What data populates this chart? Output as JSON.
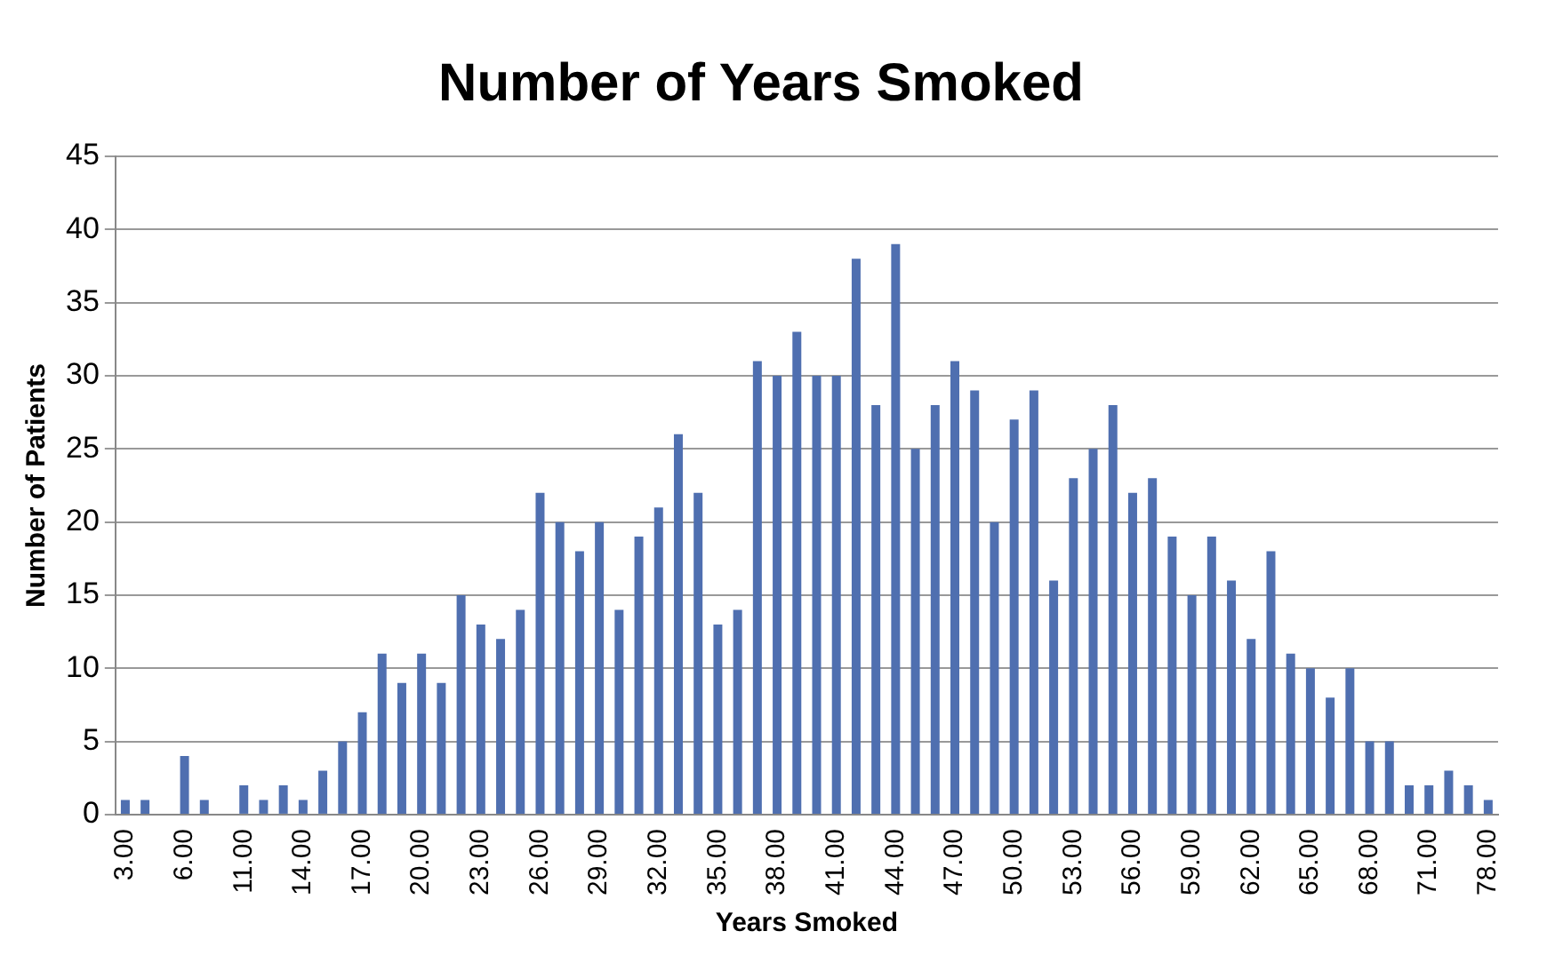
{
  "chart_data": {
    "type": "bar",
    "title": "Number of Years Smoked",
    "xlabel": "Years Smoked",
    "ylabel": "Number of Patients",
    "categories": [
      "3.00",
      null,
      null,
      "6.00",
      null,
      null,
      "11.00",
      null,
      null,
      "14.00",
      null,
      null,
      "17.00",
      null,
      null,
      "20.00",
      null,
      null,
      "23.00",
      null,
      null,
      "26.00",
      null,
      null,
      "29.00",
      null,
      null,
      "32.00",
      null,
      null,
      "35.00",
      null,
      null,
      "38.00",
      null,
      null,
      "41.00",
      null,
      null,
      "44.00",
      null,
      null,
      "47.00",
      null,
      null,
      "50.00",
      null,
      null,
      "53.00",
      null,
      null,
      "56.00",
      null,
      null,
      "59.00",
      null,
      null,
      "62.00",
      null,
      null,
      "65.00",
      null,
      null,
      "68.00",
      null,
      null,
      "71.00",
      null,
      null,
      "78.00"
    ],
    "values": [
      1,
      1,
      null,
      4,
      1,
      null,
      2,
      1,
      2,
      1,
      3,
      5,
      7,
      11,
      9,
      11,
      9,
      15,
      13,
      12,
      14,
      22,
      20,
      18,
      20,
      14,
      19,
      21,
      26,
      22,
      13,
      14,
      31,
      30,
      33,
      30,
      30,
      38,
      28,
      39,
      25,
      28,
      31,
      29,
      20,
      27,
      29,
      16,
      23,
      25,
      28,
      22,
      23,
      19,
      15,
      19,
      16,
      12,
      18,
      11,
      10,
      8,
      10,
      5,
      5,
      2,
      2,
      3,
      2,
      1
    ],
    "color": "#4f6fb0",
    "ylim": [
      0,
      45
    ],
    "yticks": [
      0,
      5,
      10,
      15,
      20,
      25,
      30,
      35,
      40,
      45
    ],
    "grid": "y",
    "legend": false
  }
}
